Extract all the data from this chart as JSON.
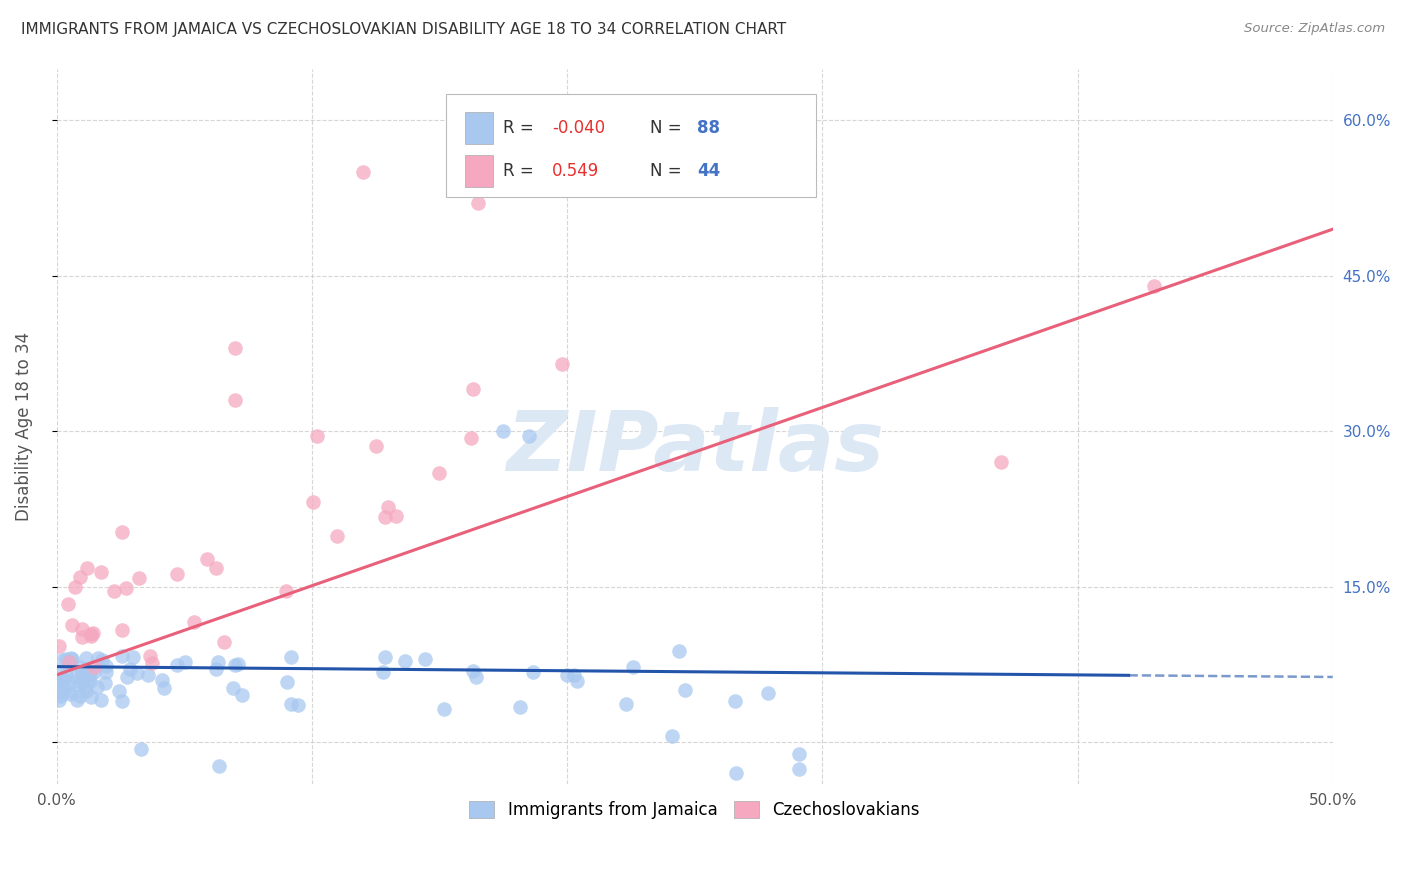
{
  "title": "IMMIGRANTS FROM JAMAICA VS CZECHOSLOVAKIAN DISABILITY AGE 18 TO 34 CORRELATION CHART",
  "source": "Source: ZipAtlas.com",
  "ylabel": "Disability Age 18 to 34",
  "xlim": [
    0.0,
    0.5
  ],
  "ylim": [
    -0.04,
    0.65
  ],
  "legend_R_blue": "-0.040",
  "legend_N_blue": "88",
  "legend_R_pink": "0.549",
  "legend_N_pink": "44",
  "blue_color": "#A8C8F0",
  "pink_color": "#F5A8C0",
  "blue_line_color": "#2255AA",
  "pink_line_color": "#E8607A",
  "background_color": "#FFFFFF",
  "grid_color": "#CCCCCC",
  "watermark_color": "#DDE8F5",
  "label_color": "#4472C4",
  "title_color": "#333333",
  "source_color": "#888888"
}
